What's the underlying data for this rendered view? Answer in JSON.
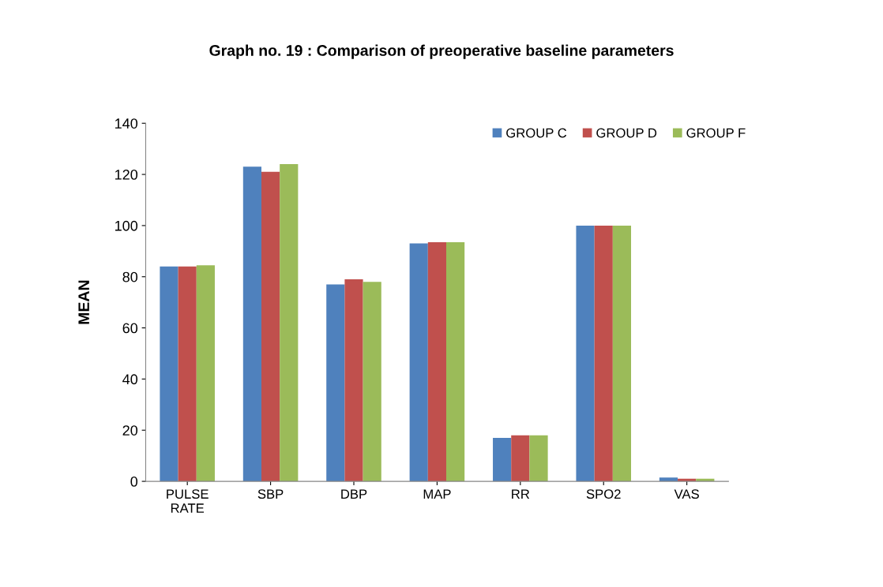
{
  "chart_data": {
    "type": "bar",
    "title": "Graph no. 19 : Comparison of preoperative baseline parameters",
    "ylabel": "MEAN",
    "categories": [
      "PULSE\nRATE",
      "SBP",
      "DBP",
      "MAP",
      "RR",
      "SPO2",
      "VAS"
    ],
    "series": [
      {
        "name": "GROUP C",
        "color": "#4f81bd",
        "values": [
          84,
          123,
          77,
          93,
          17,
          100,
          1.5
        ]
      },
      {
        "name": "GROUP D",
        "color": "#c0504d",
        "values": [
          84,
          121,
          79,
          93.5,
          18,
          100,
          1
        ]
      },
      {
        "name": "GROUP F",
        "color": "#9bbb59",
        "values": [
          84.5,
          124,
          78,
          93.5,
          18,
          100,
          1
        ]
      }
    ],
    "ylim": [
      0,
      140
    ],
    "yticks": [
      0,
      20,
      40,
      60,
      80,
      100,
      120,
      140
    ],
    "grid": false,
    "legend": "top right"
  }
}
